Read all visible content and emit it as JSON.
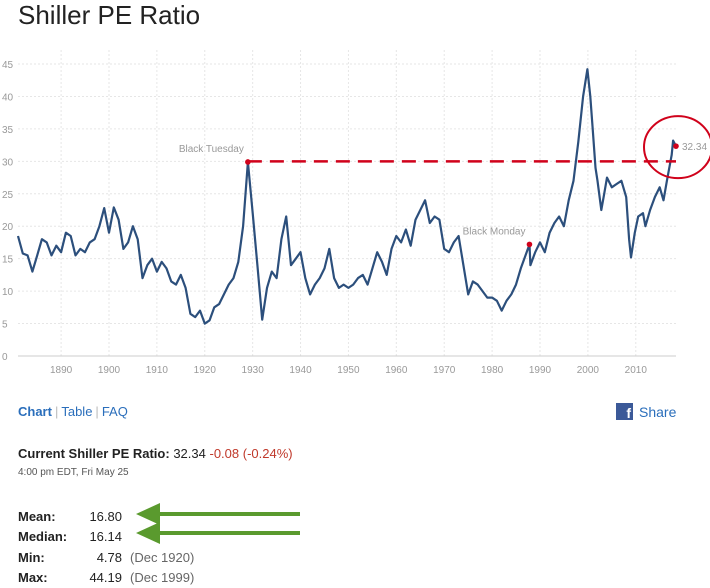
{
  "page": {
    "title": "Shiller PE Ratio"
  },
  "chart_data": {
    "type": "line",
    "title": "",
    "xlabel": "",
    "ylabel": "",
    "ylim": [
      0,
      45
    ],
    "xlim": [
      1881,
      2018.4
    ],
    "x_ticks": [
      1890,
      1900,
      1910,
      1920,
      1930,
      1940,
      1950,
      1960,
      1970,
      1980,
      1990,
      2000,
      2010
    ],
    "y_ticks": [
      0,
      5,
      10,
      15,
      20,
      25,
      30,
      35,
      40,
      45
    ],
    "grid": true,
    "series": [
      {
        "color": "#2c4f7c",
        "points": [
          [
            1881,
            18.5
          ],
          [
            1882,
            15.8
          ],
          [
            1883,
            15.5
          ],
          [
            1884,
            13.0
          ],
          [
            1885,
            15.5
          ],
          [
            1886,
            18.0
          ],
          [
            1887,
            17.5
          ],
          [
            1888,
            15.5
          ],
          [
            1889,
            17.0
          ],
          [
            1890,
            16.0
          ],
          [
            1891,
            19.0
          ],
          [
            1892,
            18.5
          ],
          [
            1893,
            15.5
          ],
          [
            1894,
            16.5
          ],
          [
            1895,
            16.0
          ],
          [
            1896,
            17.5
          ],
          [
            1897,
            18.0
          ],
          [
            1898,
            20.0
          ],
          [
            1899,
            22.8
          ],
          [
            1900,
            19.0
          ],
          [
            1901,
            22.9
          ],
          [
            1902,
            21.0
          ],
          [
            1903,
            16.5
          ],
          [
            1904,
            17.5
          ],
          [
            1905,
            20.0
          ],
          [
            1906,
            18.0
          ],
          [
            1907,
            12.0
          ],
          [
            1908,
            14.0
          ],
          [
            1909,
            15.0
          ],
          [
            1910,
            13.0
          ],
          [
            1911,
            14.5
          ],
          [
            1912,
            13.5
          ],
          [
            1913,
            11.5
          ],
          [
            1914,
            11.0
          ],
          [
            1915,
            12.5
          ],
          [
            1916,
            10.5
          ],
          [
            1917,
            6.5
          ],
          [
            1918,
            6.0
          ],
          [
            1919,
            7.0
          ],
          [
            1920,
            5.0
          ],
          [
            1921,
            5.5
          ],
          [
            1922,
            7.5
          ],
          [
            1923,
            8.0
          ],
          [
            1924,
            9.5
          ],
          [
            1925,
            11.0
          ],
          [
            1926,
            12.0
          ],
          [
            1927,
            14.5
          ],
          [
            1928,
            20.0
          ],
          [
            1929,
            29.9
          ],
          [
            1930,
            22.0
          ],
          [
            1931,
            14.0
          ],
          [
            1932,
            5.6
          ],
          [
            1933,
            10.5
          ],
          [
            1934,
            13.0
          ],
          [
            1935,
            12.0
          ],
          [
            1936,
            18.0
          ],
          [
            1937,
            21.5
          ],
          [
            1938,
            14.0
          ],
          [
            1939,
            15.0
          ],
          [
            1940,
            16.0
          ],
          [
            1941,
            12.0
          ],
          [
            1942,
            9.5
          ],
          [
            1943,
            11.0
          ],
          [
            1944,
            12.0
          ],
          [
            1945,
            13.5
          ],
          [
            1946,
            16.5
          ],
          [
            1947,
            12.0
          ],
          [
            1948,
            10.5
          ],
          [
            1949,
            11.0
          ],
          [
            1950,
            10.5
          ],
          [
            1951,
            11.0
          ],
          [
            1952,
            12.0
          ],
          [
            1953,
            12.5
          ],
          [
            1954,
            11.0
          ],
          [
            1955,
            13.5
          ],
          [
            1956,
            16.0
          ],
          [
            1957,
            14.5
          ],
          [
            1958,
            12.5
          ],
          [
            1959,
            16.5
          ],
          [
            1960,
            18.5
          ],
          [
            1961,
            17.5
          ],
          [
            1962,
            19.5
          ],
          [
            1963,
            17.0
          ],
          [
            1964,
            21.0
          ],
          [
            1965,
            22.5
          ],
          [
            1966,
            24.0
          ],
          [
            1967,
            20.5
          ],
          [
            1968,
            21.5
          ],
          [
            1969,
            21.0
          ],
          [
            1970,
            16.5
          ],
          [
            1971,
            16.0
          ],
          [
            1972,
            17.5
          ],
          [
            1973,
            18.5
          ],
          [
            1974,
            14.0
          ],
          [
            1975,
            9.5
          ],
          [
            1976,
            11.5
          ],
          [
            1977,
            11.0
          ],
          [
            1978,
            10.0
          ],
          [
            1979,
            9.0
          ],
          [
            1980,
            9.0
          ],
          [
            1981,
            8.5
          ],
          [
            1982,
            7.0
          ],
          [
            1983,
            8.5
          ],
          [
            1984,
            9.5
          ],
          [
            1985,
            11.0
          ],
          [
            1986,
            13.5
          ],
          [
            1987.8,
            17.2
          ],
          [
            1988,
            14.0
          ],
          [
            1989,
            16.0
          ],
          [
            1990,
            17.5
          ],
          [
            1991,
            16.0
          ],
          [
            1992,
            19.0
          ],
          [
            1993,
            20.5
          ],
          [
            1994,
            21.5
          ],
          [
            1995,
            20.0
          ],
          [
            1996,
            24.0
          ],
          [
            1997,
            27.0
          ],
          [
            1998,
            33.0
          ],
          [
            1999,
            40.0
          ],
          [
            1999.9,
            44.2
          ],
          [
            2000.5,
            40.0
          ],
          [
            2001,
            35.0
          ],
          [
            2001.6,
            29.0
          ],
          [
            2002,
            27.0
          ],
          [
            2002.8,
            22.5
          ],
          [
            2003.4,
            25.0
          ],
          [
            2004,
            27.5
          ],
          [
            2005,
            26.0
          ],
          [
            2006,
            26.5
          ],
          [
            2007,
            27.0
          ],
          [
            2008,
            24.5
          ],
          [
            2008.6,
            18.0
          ],
          [
            2009,
            15.2
          ],
          [
            2009.8,
            19.0
          ],
          [
            2010.5,
            21.5
          ],
          [
            2011.5,
            22.0
          ],
          [
            2012,
            20.0
          ],
          [
            2013,
            22.5
          ],
          [
            2014,
            24.5
          ],
          [
            2015,
            26.0
          ],
          [
            2015.8,
            24.0
          ],
          [
            2016.5,
            27.0
          ],
          [
            2017.5,
            31.0
          ],
          [
            2017.8,
            33.2
          ],
          [
            2018.4,
            32.34
          ]
        ]
      }
    ],
    "reference_line": {
      "y": 30,
      "x_start": 1929,
      "x_end": 2018.4,
      "color": "#d0021b",
      "style": "dashed"
    },
    "highlight_circle": {
      "cx": 2018.4,
      "cy": 32.34,
      "color": "#d0021b"
    },
    "annotations": [
      {
        "text": "Black Tuesday",
        "x": 1929,
        "y": 29.9
      },
      {
        "text": "Black Monday",
        "x": 1987.8,
        "y": 17.2
      }
    ],
    "current_label": "32.34",
    "point_color": "#d0021b"
  },
  "nav": {
    "tabs": [
      {
        "label": "Chart",
        "active": true
      },
      {
        "label": "Table",
        "active": false
      },
      {
        "label": "FAQ",
        "active": false
      }
    ],
    "separator": "|",
    "share_label": "Share",
    "fb_glyph": "f"
  },
  "current": {
    "label": "Current Shiller PE Ratio:",
    "value": "32.34",
    "change": "-0.08 (-0.24%)",
    "timestamp": "4:00 pm EDT, Fri May 25"
  },
  "stats": [
    {
      "label": "Mean:",
      "value": "16.80",
      "date": ""
    },
    {
      "label": "Median:",
      "value": "16.14",
      "date": ""
    },
    {
      "label": "Min:",
      "value": "4.78",
      "date": "(Dec 1920)"
    },
    {
      "label": "Max:",
      "value": "44.19",
      "date": "(Dec 1999)"
    }
  ],
  "arrow_color": "#5a9a2e"
}
